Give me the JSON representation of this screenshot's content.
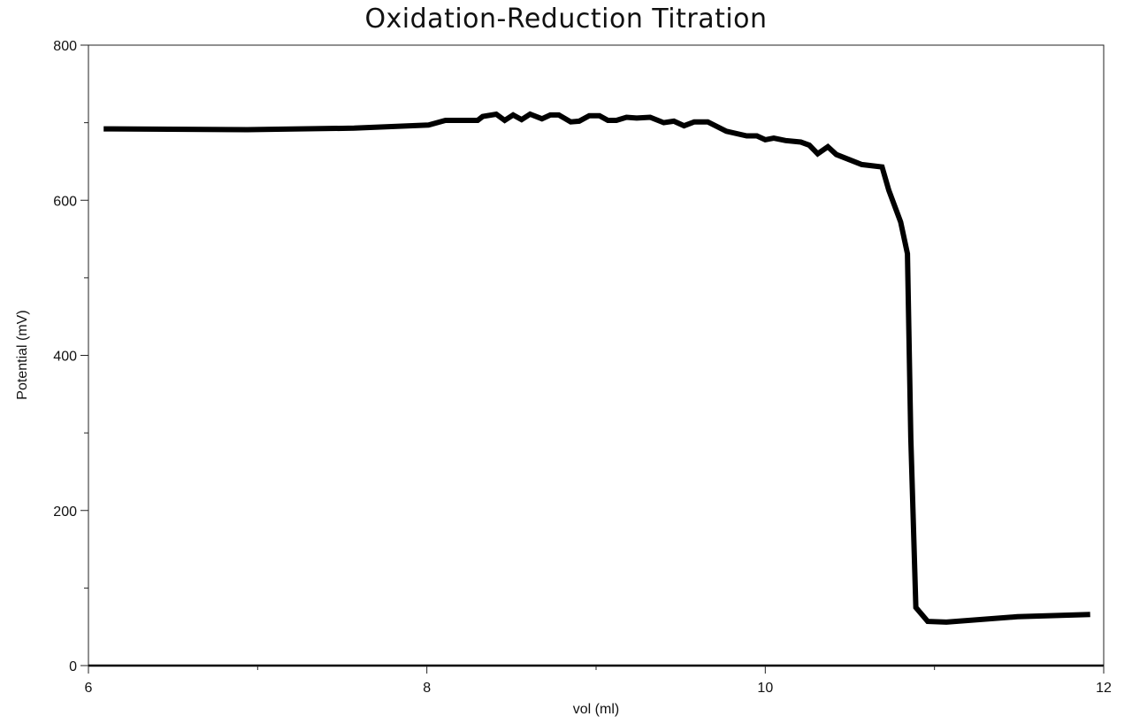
{
  "chart_data": {
    "type": "line",
    "title": "Oxidation-Reduction Titration",
    "xlabel": "vol (ml)",
    "ylabel": "Potential (mV)",
    "xlim": [
      6,
      12
    ],
    "ylim": [
      0,
      800
    ],
    "x_ticks": [
      6,
      8,
      10,
      12
    ],
    "x_minor_ticks": [
      7,
      9,
      11
    ],
    "y_ticks": [
      0,
      200,
      400,
      600,
      800
    ],
    "y_minor_ticks": [
      100,
      300,
      500,
      700
    ],
    "grid": false,
    "legend": null,
    "series": [
      {
        "name": "Potential",
        "color": "#000000",
        "x": [
          6.09,
          6.94,
          7.57,
          8.01,
          8.11,
          8.3,
          8.33,
          8.41,
          8.46,
          8.51,
          8.56,
          8.61,
          8.68,
          8.73,
          8.78,
          8.85,
          8.9,
          8.96,
          9.02,
          9.07,
          9.12,
          9.18,
          9.24,
          9.32,
          9.4,
          9.46,
          9.52,
          9.58,
          9.66,
          9.77,
          9.89,
          9.95,
          10.0,
          10.05,
          10.12,
          10.21,
          10.26,
          10.31,
          10.37,
          10.42,
          10.57,
          10.69,
          10.73,
          10.8,
          10.84,
          10.86,
          10.89,
          10.96,
          11.07,
          11.49,
          11.92
        ],
        "y": [
          692,
          691,
          693,
          697,
          703,
          703,
          708,
          711,
          703,
          710,
          704,
          711,
          705,
          710,
          710,
          701,
          702,
          709,
          709,
          703,
          703,
          707,
          706,
          707,
          700,
          702,
          696,
          701,
          701,
          689,
          683,
          683,
          678,
          680,
          677,
          675,
          671,
          660,
          669,
          659,
          646,
          643,
          613,
          572,
          531,
          293,
          75,
          57,
          56,
          63,
          66
        ]
      }
    ]
  }
}
